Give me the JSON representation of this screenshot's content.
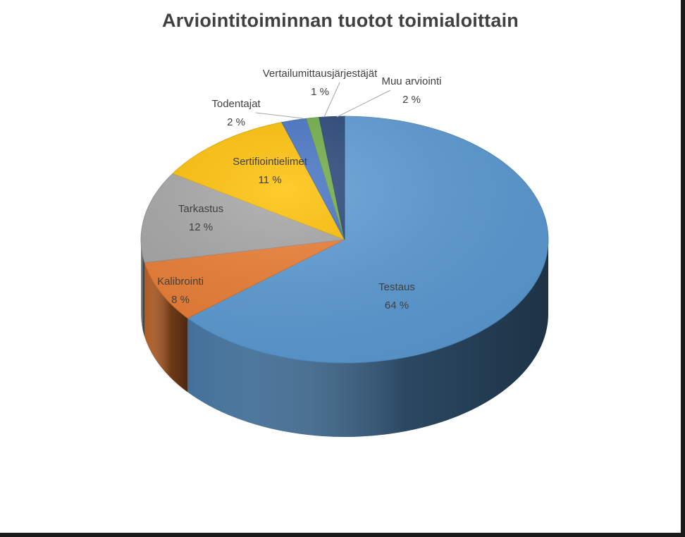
{
  "chart_data": {
    "type": "pie",
    "title": "Arviointitoiminnan  tuotot toimialoittain",
    "slices": [
      {
        "name": "Testaus",
        "value": 64,
        "label": "64 %",
        "color": "#5B9BD5"
      },
      {
        "name": "Kalibrointi",
        "value": 8,
        "label": "8 %",
        "color": "#ED7D31"
      },
      {
        "name": "Tarkastus",
        "value": 12,
        "label": "12 %",
        "color": "#A5A5A5"
      },
      {
        "name": "Sertifiointielimet",
        "value": 11,
        "label": "11 %",
        "color": "#FFC000"
      },
      {
        "name": "Todentajat",
        "value": 2,
        "label": "2 %",
        "color": "#4472C4"
      },
      {
        "name": "Vertailumittausjärjestäjät",
        "value": 1,
        "label": "1 %",
        "color": "#70AD47"
      },
      {
        "name": "Muu arviointi",
        "value": 2,
        "label": "2 %",
        "color": "#264478"
      }
    ],
    "style": "3d-exploded-none",
    "legend": "none",
    "data_labels": "category-and-percent"
  }
}
